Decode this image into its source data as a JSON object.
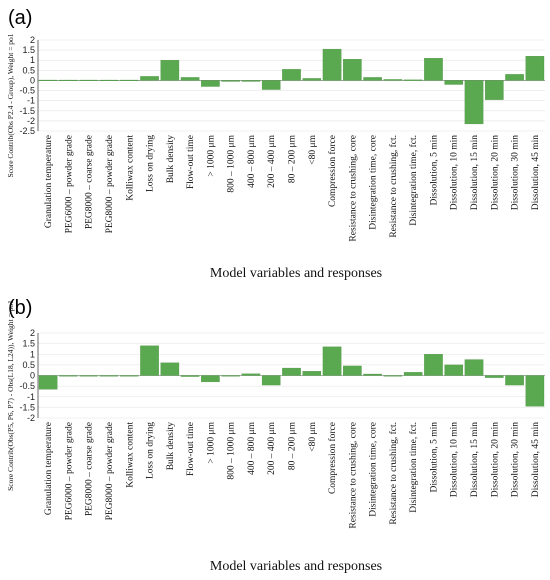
{
  "chart_data": [
    {
      "panel_label": "(a)",
      "type": "bar",
      "ylabel": "Score Contrib(Obs P2.4 - Group), Weight = po1",
      "xlabel": "Model variables and responses",
      "ylim": [
        -2.5,
        2
      ],
      "yticks": [
        "2",
        "1.5",
        "1",
        "0.5",
        "0",
        "-0.5",
        "-1",
        "-1.5",
        "-2",
        "-2.5"
      ],
      "bar_color": "#5aa84f",
      "categories": [
        "Granulation temperature",
        "PEG6000 – powder grade",
        "PEG8000 – coarse grade",
        "PEG8000 – powder grade",
        "Kolliwax content",
        "Loss on drying",
        "Bulk density",
        "Flow-out time",
        "> 1000 μm",
        "800 – 1000 μm",
        "400 – 800 μm",
        "200 – 400 μm",
        "80 – 200 μm",
        "<80 μm",
        "Compression force",
        "Resistance to crushing, core",
        "Disintegration time, core",
        "Resistance to crushing, fct.",
        "Disintegration time, fct.",
        "Dissolution, 5 min",
        "Dissolution, 10 min",
        "Dissolution, 15 min",
        "Dissolution, 20 min",
        "Dissolution, 30 min",
        "Dissolution, 45 min"
      ],
      "values": [
        0.02,
        0.02,
        0.02,
        0.02,
        0.02,
        0.2,
        1.0,
        0.15,
        -0.3,
        -0.05,
        -0.05,
        -0.45,
        0.55,
        0.1,
        1.55,
        1.05,
        0.15,
        0.05,
        0.03,
        1.1,
        -0.2,
        -2.15,
        -0.95,
        0.3,
        1.2
      ]
    },
    {
      "panel_label": "(b)",
      "type": "bar",
      "ylabel": "Score Contrib(Obs(P5, P6, P7) - Obs(L18, L24)), Weight = po1",
      "xlabel": "Model variables and responses",
      "ylim": [
        -2,
        2
      ],
      "yticks": [
        "2",
        "1.5",
        "1",
        "0.5",
        "0",
        "-0.5",
        "-1",
        "-1.5",
        "-2"
      ],
      "bar_color": "#5aa84f",
      "categories": [
        "Granulation temperature",
        "PEG6000 – powder grade",
        "PEG8000 – coarse grade",
        "PEG8000 – powder grade",
        "Kolliwax content",
        "Loss on drying",
        "Bulk density",
        "Flow-out time",
        "> 1000 μm",
        "800 – 1000 μm",
        "400 – 800 μm",
        "200 – 400 μm",
        "80 – 200 μm",
        "<80 μm",
        "Compression force",
        "Resistance to crushing, core",
        "Disintegration time, core",
        "Resistance to crushing, fct.",
        "Disintegration time, fct.",
        "Dissolution, 5 min",
        "Dissolution, 10 min",
        "Dissolution, 15 min",
        "Dissolution, 20 min",
        "Dissolution, 30 min",
        "Dissolution, 45 min"
      ],
      "values": [
        -0.65,
        -0.02,
        -0.02,
        -0.02,
        -0.02,
        1.4,
        0.6,
        -0.05,
        -0.3,
        -0.02,
        0.08,
        -0.45,
        0.35,
        0.2,
        1.35,
        0.45,
        0.07,
        -0.02,
        0.15,
        1.0,
        0.5,
        0.75,
        -0.1,
        -0.45,
        -1.45
      ]
    }
  ]
}
